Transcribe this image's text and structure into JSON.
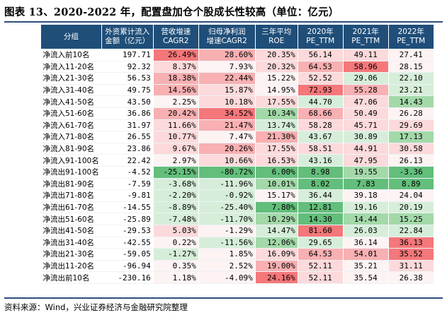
{
  "title": "图表 13、2020-2022 年，配置盘加仓个股成长性较高（单位：亿元）",
  "source": "资料来源：Wind，兴业证券经济与金融研究院整理",
  "headers": [
    {
      "line1": "分组",
      "line2": ""
    },
    {
      "line1": "外资累计流入",
      "line2": "金额（亿元）"
    },
    {
      "line1": "营收增速",
      "line2": "CAGR2"
    },
    {
      "line1": "归母净利润",
      "line2": "增速CAGR2"
    },
    {
      "line1": "三年平均",
      "line2": "ROE"
    },
    {
      "line1": "2020年",
      "line2": "PE_TTM"
    },
    {
      "line1": "2021年",
      "line2": "PE_TTM"
    },
    {
      "line1": "2022年",
      "line2": "PE_TTM"
    }
  ],
  "colors": {
    "header_bg": "#1f4e79",
    "strong_red": "#f4777a",
    "mid_red": "#f8b0b2",
    "light_red": "#fcd9da",
    "strong_green": "#63be7b",
    "mid_green": "#a3d9a9",
    "light_green": "#d6eed9",
    "neutral": "#fdf3f3",
    "white": "#ffffff"
  },
  "rows": [
    {
      "name": "净流入前10名",
      "c": [
        [
          "197.71",
          "white"
        ],
        [
          "26.49%",
          "strong_red"
        ],
        [
          "28.60%",
          "mid_red"
        ],
        [
          "20.35%",
          "light_red"
        ],
        [
          "56.14",
          "light_red"
        ],
        [
          "49.11",
          "light_red"
        ],
        [
          "27.41",
          "neutral"
        ]
      ]
    },
    {
      "name": "净流入11-20名",
      "c": [
        [
          "92.32",
          "white"
        ],
        [
          "8.37%",
          "light_red"
        ],
        [
          "7.93%",
          "neutral"
        ],
        [
          "20.32%",
          "light_red"
        ],
        [
          "64.53",
          "mid_red"
        ],
        [
          "58.96",
          "strong_red"
        ],
        [
          "28.15",
          "neutral"
        ]
      ]
    },
    {
      "name": "净流入21-30名",
      "c": [
        [
          "56.53",
          "white"
        ],
        [
          "18.38%",
          "mid_red"
        ],
        [
          "22.44%",
          "mid_red"
        ],
        [
          "15.22%",
          "neutral"
        ],
        [
          "52.52",
          "light_red"
        ],
        [
          "29.06",
          "light_green"
        ],
        [
          "22.10",
          "light_green"
        ]
      ]
    },
    {
      "name": "净流入31-40名",
      "c": [
        [
          "49.75",
          "white"
        ],
        [
          "14.56%",
          "mid_red"
        ],
        [
          "15.87%",
          "light_red"
        ],
        [
          "14.95%",
          "neutral"
        ],
        [
          "72.93",
          "strong_red"
        ],
        [
          "55.28",
          "mid_red"
        ],
        [
          "23.21",
          "light_green"
        ]
      ]
    },
    {
      "name": "净流入41-50名",
      "c": [
        [
          "43.50",
          "white"
        ],
        [
          "2.25%",
          "neutral"
        ],
        [
          "10.18%",
          "light_red"
        ],
        [
          "17.55%",
          "light_red"
        ],
        [
          "44.70",
          "light_green"
        ],
        [
          "47.06",
          "light_red"
        ],
        [
          "14.43",
          "mid_green"
        ]
      ]
    },
    {
      "name": "净流入51-60名",
      "c": [
        [
          "36.86",
          "white"
        ],
        [
          "20.42%",
          "mid_red"
        ],
        [
          "34.52%",
          "strong_red"
        ],
        [
          "10.34%",
          "mid_green"
        ],
        [
          "68.66",
          "mid_red"
        ],
        [
          "50.49",
          "light_red"
        ],
        [
          "26.28",
          "neutral"
        ]
      ]
    },
    {
      "name": "净流入61-70名",
      "c": [
        [
          "31.97",
          "white"
        ],
        [
          "11.66%",
          "light_red"
        ],
        [
          "21.47%",
          "mid_red"
        ],
        [
          "13.74%",
          "light_green"
        ],
        [
          "58.28",
          "light_red"
        ],
        [
          "45.71",
          "light_red"
        ],
        [
          "29.69",
          "light_red"
        ]
      ]
    },
    {
      "name": "净流入71-80名",
      "c": [
        [
          "26.55",
          "white"
        ],
        [
          "10.77%",
          "light_red"
        ],
        [
          "7.47%",
          "neutral"
        ],
        [
          "21.30%",
          "mid_red"
        ],
        [
          "43.67",
          "light_green"
        ],
        [
          "30.89",
          "light_green"
        ],
        [
          "17.13",
          "mid_green"
        ]
      ]
    },
    {
      "name": "净流入81-90名",
      "c": [
        [
          "23.86",
          "white"
        ],
        [
          "9.67%",
          "light_red"
        ],
        [
          "20.26%",
          "mid_red"
        ],
        [
          "17.55%",
          "light_red"
        ],
        [
          "58.51",
          "light_red"
        ],
        [
          "44.91",
          "light_red"
        ],
        [
          "30.58",
          "light_red"
        ]
      ]
    },
    {
      "name": "净流入91-100名",
      "c": [
        [
          "22.42",
          "white"
        ],
        [
          "2.97%",
          "neutral"
        ],
        [
          "10.66%",
          "light_red"
        ],
        [
          "16.53%",
          "light_red"
        ],
        [
          "43.16",
          "light_green"
        ],
        [
          "47.95",
          "light_red"
        ],
        [
          "26.13",
          "neutral"
        ]
      ]
    },
    {
      "name": "净流出91-100名",
      "c": [
        [
          "-4.52",
          "white"
        ],
        [
          "-25.15%",
          "strong_green"
        ],
        [
          "-80.72%",
          "strong_green"
        ],
        [
          "6.00%",
          "strong_green"
        ],
        [
          "8.98",
          "strong_green"
        ],
        [
          "19.55",
          "mid_green"
        ],
        [
          "-3.36",
          "strong_green"
        ]
      ]
    },
    {
      "name": "净流出81-90名",
      "c": [
        [
          "-7.59",
          "white"
        ],
        [
          "-3.68%",
          "light_green"
        ],
        [
          "-11.96%",
          "light_green"
        ],
        [
          "10.01%",
          "mid_green"
        ],
        [
          "8.02",
          "strong_green"
        ],
        [
          "7.83",
          "strong_green"
        ],
        [
          "8.89",
          "strong_green"
        ]
      ]
    },
    {
      "name": "净流出71-80名",
      "c": [
        [
          "-9.81",
          "white"
        ],
        [
          "-2.20%",
          "light_green"
        ],
        [
          "-0.92%",
          "light_green"
        ],
        [
          "15.17%",
          "neutral"
        ],
        [
          "36.44",
          "light_green"
        ],
        [
          "39.18",
          "neutral"
        ],
        [
          "24.04",
          "neutral"
        ]
      ]
    },
    {
      "name": "净流出61-70名",
      "c": [
        [
          "-14.55",
          "white"
        ],
        [
          "-8.89%",
          "light_green"
        ],
        [
          "-25.40%",
          "light_green"
        ],
        [
          "7.80%",
          "strong_green"
        ],
        [
          "12.81",
          "strong_green"
        ],
        [
          "19.16",
          "light_green"
        ],
        [
          "20.19",
          "light_green"
        ]
      ]
    },
    {
      "name": "净流出51-60名",
      "c": [
        [
          "-25.89",
          "white"
        ],
        [
          "-7.48%",
          "light_green"
        ],
        [
          "-11.70%",
          "light_green"
        ],
        [
          "10.29%",
          "mid_green"
        ],
        [
          "14.30",
          "strong_green"
        ],
        [
          "14.44",
          "mid_green"
        ],
        [
          "15.25",
          "mid_green"
        ]
      ]
    },
    {
      "name": "净流出41-50名",
      "c": [
        [
          "-29.53",
          "white"
        ],
        [
          "5.03%",
          "light_red"
        ],
        [
          "-1.29%",
          "neutral"
        ],
        [
          "14.47%",
          "light_green"
        ],
        [
          "81.60",
          "strong_red"
        ],
        [
          "26.03",
          "light_green"
        ],
        [
          "22.84",
          "light_green"
        ]
      ]
    },
    {
      "name": "净流出31-40名",
      "c": [
        [
          "-42.55",
          "white"
        ],
        [
          "0.22%",
          "neutral"
        ],
        [
          "-11.56%",
          "light_green"
        ],
        [
          "12.06%",
          "mid_green"
        ],
        [
          "29.65",
          "light_green"
        ],
        [
          "36.14",
          "neutral"
        ],
        [
          "36.13",
          "strong_red"
        ]
      ]
    },
    {
      "name": "净流出21-30名",
      "c": [
        [
          "-59.05",
          "white"
        ],
        [
          "-1.27%",
          "light_green"
        ],
        [
          "1.85%",
          "neutral"
        ],
        [
          "16.09%",
          "light_red"
        ],
        [
          "64.53",
          "mid_red"
        ],
        [
          "54.01",
          "mid_red"
        ],
        [
          "35.52",
          "strong_red"
        ]
      ]
    },
    {
      "name": "净流出11-20名",
      "c": [
        [
          "-96.94",
          "white"
        ],
        [
          "0.35%",
          "neutral"
        ],
        [
          "2.52%",
          "neutral"
        ],
        [
          "19.00%",
          "mid_red"
        ],
        [
          "52.11",
          "light_red"
        ],
        [
          "35.21",
          "neutral"
        ],
        [
          "31.11",
          "light_red"
        ]
      ]
    },
    {
      "name": "净流出前10名",
      "c": [
        [
          "-230.16",
          "white"
        ],
        [
          "1.18%",
          "neutral"
        ],
        [
          "-4.09%",
          "neutral"
        ],
        [
          "24.16%",
          "strong_red"
        ],
        [
          "52.11",
          "light_red"
        ],
        [
          "35.54",
          "neutral"
        ],
        [
          "26.38",
          "neutral"
        ]
      ]
    }
  ]
}
